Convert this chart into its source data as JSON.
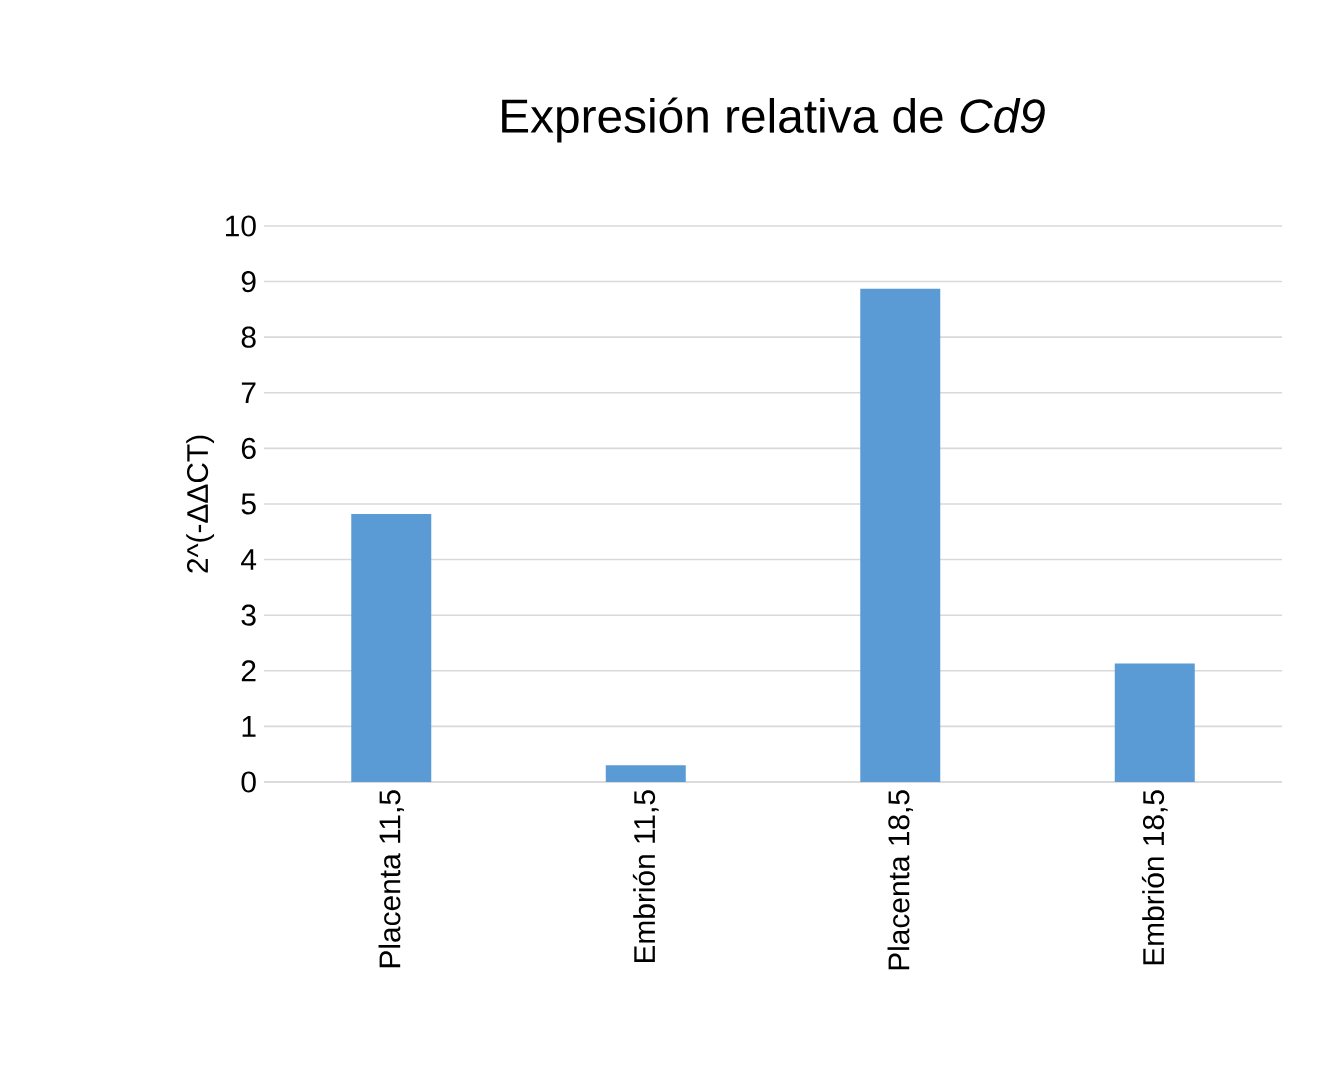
{
  "chart_data": {
    "type": "bar",
    "title": "Expresión relativa de *Cd9*",
    "ylabel": "2^(-ΔΔCT)",
    "categories": [
      "Placenta 11,5",
      "Embrión 11,5",
      "Placenta 18,5",
      "Embrión 18,5"
    ],
    "values": [
      4.82,
      0.3,
      8.87,
      2.13
    ],
    "color": "#5b9bd5",
    "ylim": [
      0,
      10
    ],
    "yticks": [
      0,
      1,
      2,
      3,
      4,
      5,
      6,
      7,
      8,
      9,
      10
    ],
    "grid": "y"
  }
}
